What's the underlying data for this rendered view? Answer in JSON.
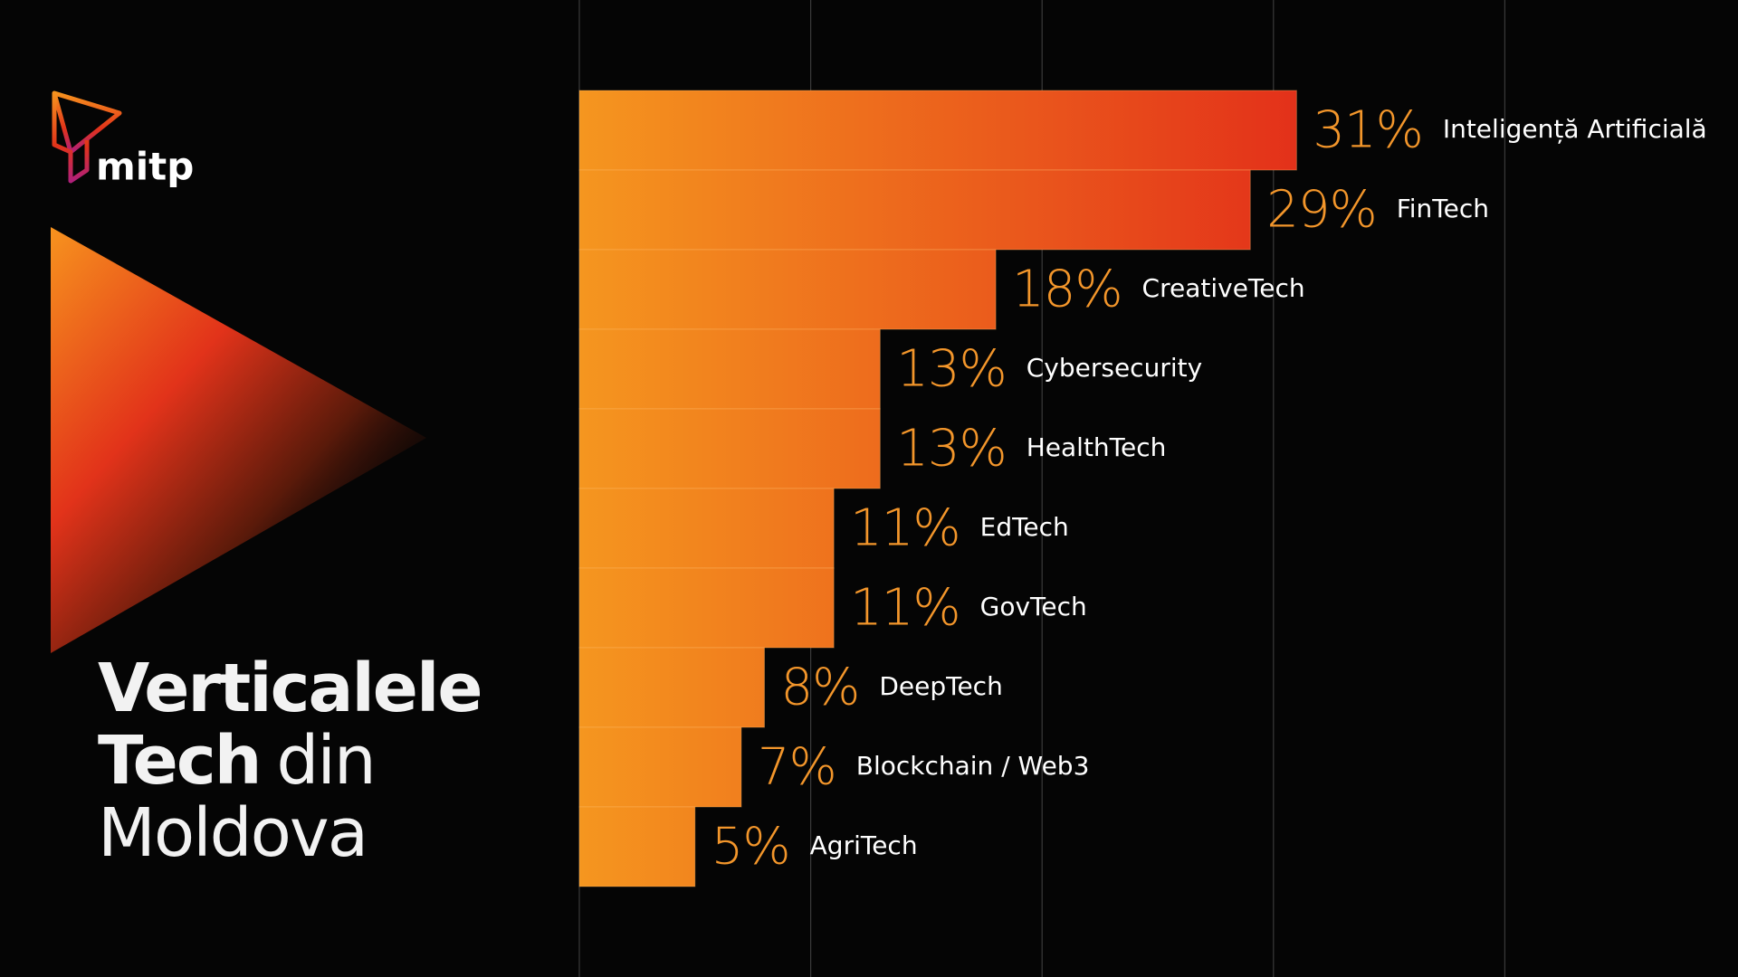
{
  "logo": "mitp",
  "chart_data": {
    "type": "bar",
    "orientation": "horizontal",
    "title": [
      {
        "text": "Verticalele",
        "bold": true
      },
      {
        "text": "Tech",
        "bold": true
      },
      {
        "text": "din",
        "bold": false
      },
      {
        "text": "Moldova",
        "bold": false
      }
    ],
    "categories": [
      "Inteligență Artificială",
      "FinTech",
      "CreativeTech",
      "Cybersecurity",
      "HealthTech",
      "EdTech",
      "GovTech",
      "DeepTech",
      "Blockchain / Web3",
      "AgriTech"
    ],
    "values": [
      31,
      29,
      18,
      13,
      13,
      11,
      11,
      8,
      7,
      5
    ],
    "value_labels": [
      "31%",
      "29%",
      "18%",
      "13%",
      "13%",
      "11%",
      "11%",
      "8%",
      "7%",
      "5%"
    ],
    "colors": [
      "#f5961f",
      "#e3311a"
    ],
    "xlim": [
      0,
      50
    ],
    "xticks": [
      0,
      10,
      20,
      30,
      40
    ],
    "grid": true
  }
}
